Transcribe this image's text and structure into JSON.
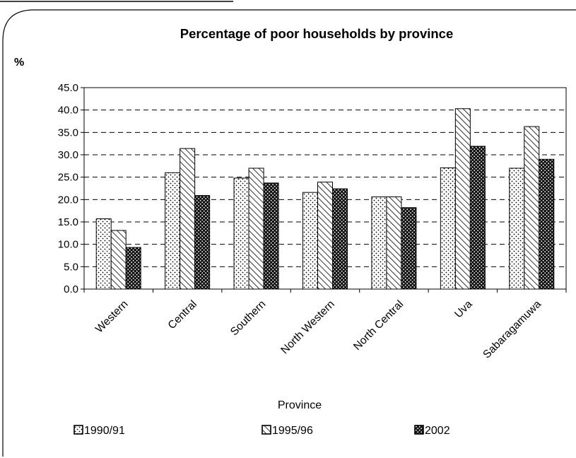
{
  "chart_data": {
    "type": "bar",
    "title": "Percentage of poor households by  province",
    "ylabel": "%",
    "xlabel": "Province",
    "categories": [
      "Western",
      "Central",
      "Southern",
      "North Western",
      "North Central",
      "Uva",
      "Sabaragamuwa"
    ],
    "series": [
      {
        "name": "1990/91",
        "pattern": "dots-light",
        "values": [
          15.7,
          26.0,
          24.8,
          21.6,
          20.6,
          27.1,
          27.0
        ]
      },
      {
        "name": "1995/96",
        "pattern": "diagonal-hatch",
        "values": [
          13.1,
          31.4,
          27.0,
          23.9,
          20.6,
          40.3,
          36.3
        ]
      },
      {
        "name": "2002",
        "pattern": "dots-dark",
        "values": [
          9.3,
          20.9,
          23.7,
          22.4,
          18.2,
          31.9,
          29.0
        ]
      }
    ],
    "ylim": [
      0,
      45
    ],
    "yticks": [
      "0.0",
      "5.0",
      "10.0",
      "15.0",
      "20.0",
      "25.0",
      "30.0",
      "35.0",
      "40.0",
      "45.0"
    ],
    "grid": true,
    "legend_position": "bottom"
  }
}
